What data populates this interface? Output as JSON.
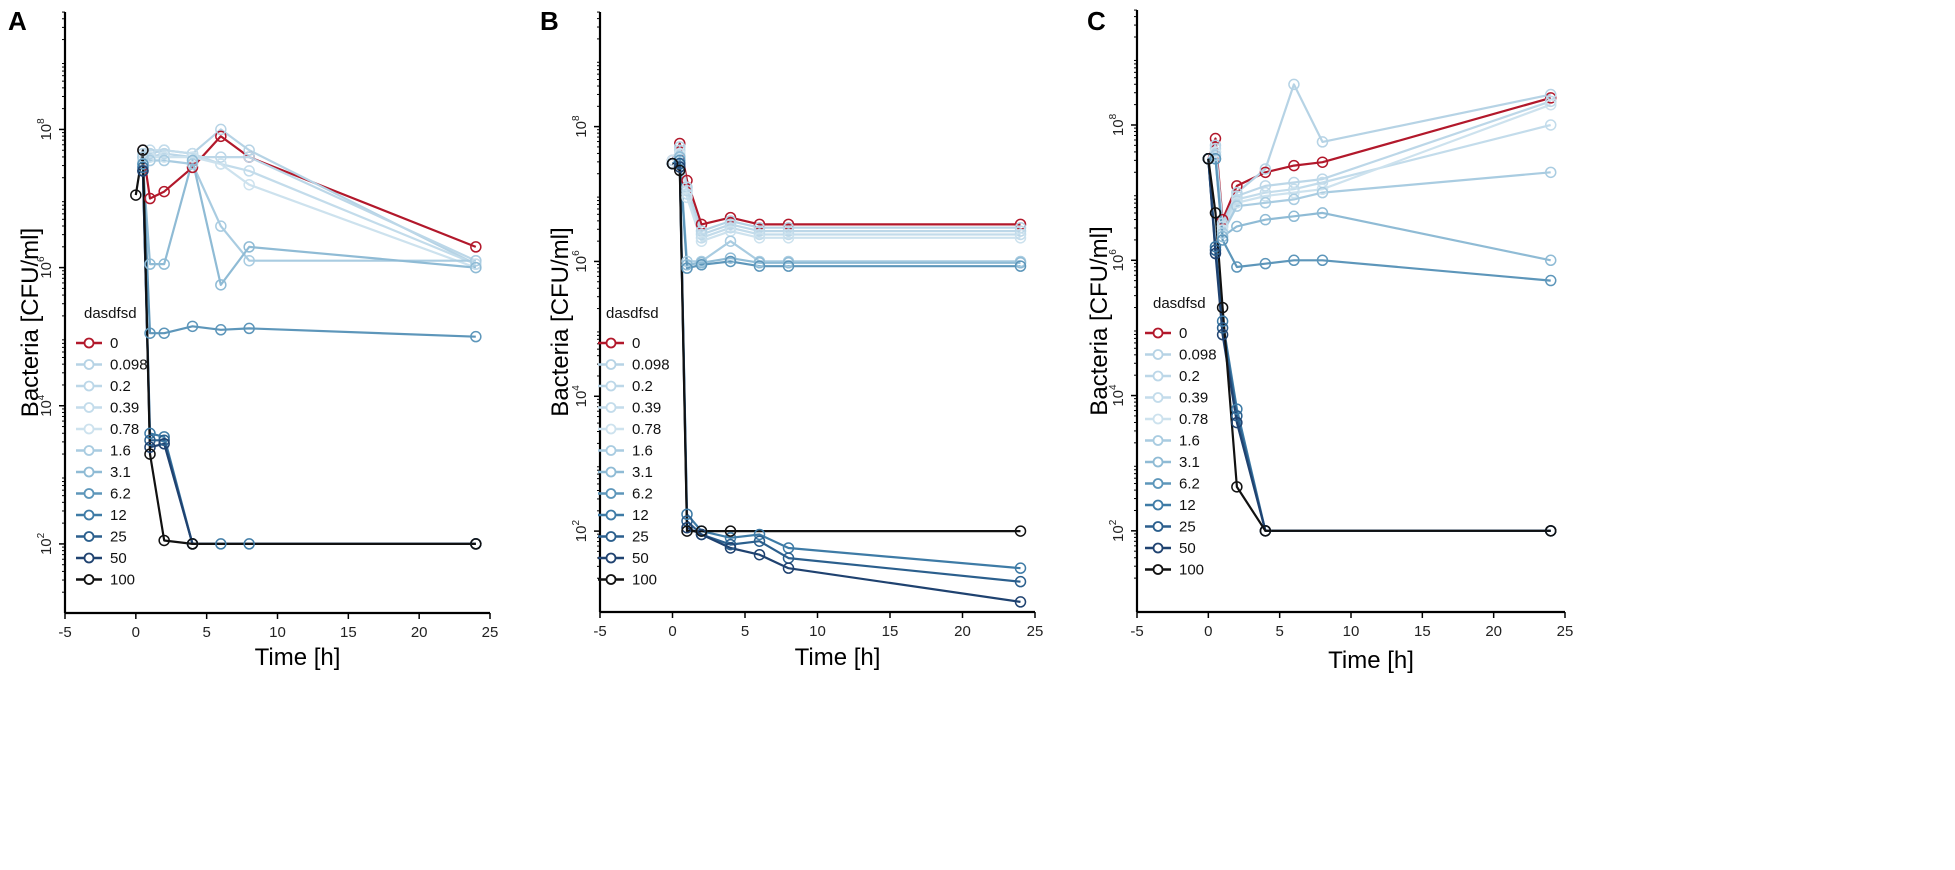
{
  "chart_data": [
    {
      "type": "line",
      "panel": "A",
      "xlabel": "Time [h]",
      "ylabel": "Bacteria [CFU/ml]",
      "xlim": [
        -5,
        25
      ],
      "ylim_log10": [
        1,
        9.7
      ],
      "xticks": [
        "-5",
        "0",
        "5",
        "10",
        "15",
        "20",
        "25"
      ],
      "yticks": [
        {
          "exp": 2,
          "label": "10",
          "sup": "2"
        },
        {
          "exp": 4,
          "label": "10",
          "sup": "4"
        },
        {
          "exp": 6,
          "label": "10",
          "sup": "6"
        },
        {
          "exp": 8,
          "label": "10",
          "sup": "8"
        }
      ],
      "legend_title": "dasdfsd",
      "series": [
        {
          "name": "0",
          "color": "#b2182b",
          "x": [
            0.5,
            1,
            2,
            4,
            6,
            8,
            24
          ],
          "y": [
            7.7,
            7.0,
            7.1,
            7.45,
            7.9,
            7.6,
            6.3
          ]
        },
        {
          "name": "0.098",
          "color": "#b6d3e5",
          "x": [
            0.5,
            1,
            2,
            4,
            6,
            8,
            24
          ],
          "y": [
            7.65,
            7.65,
            7.7,
            7.65,
            8.0,
            7.7,
            6.05
          ]
        },
        {
          "name": "0.2",
          "color": "#bcd7e8",
          "x": [
            0.5,
            1,
            2,
            4,
            6,
            8,
            24
          ],
          "y": [
            7.6,
            7.6,
            7.65,
            7.6,
            7.6,
            7.6,
            6.1
          ]
        },
        {
          "name": "0.39",
          "color": "#c3dceb",
          "x": [
            0.5,
            1,
            2,
            4,
            6,
            8,
            24
          ],
          "y": [
            7.7,
            7.7,
            7.7,
            7.65,
            7.5,
            7.4,
            6.05
          ]
        },
        {
          "name": "0.78",
          "color": "#cde2ee",
          "x": [
            0.5,
            1,
            2,
            4,
            6,
            8,
            24
          ],
          "y": [
            7.55,
            7.6,
            7.6,
            7.6,
            7.5,
            7.2,
            6.0
          ]
        },
        {
          "name": "1.6",
          "color": "#a9cce1",
          "x": [
            0.5,
            1,
            2,
            4,
            6,
            8,
            24
          ],
          "y": [
            7.6,
            7.55,
            7.55,
            7.5,
            6.6,
            6.1,
            6.1
          ]
        },
        {
          "name": "3.1",
          "color": "#8fbbd5",
          "x": [
            0.5,
            1,
            2,
            4,
            6,
            8,
            24
          ],
          "y": [
            7.5,
            6.05,
            6.05,
            7.55,
            5.75,
            6.3,
            6.0
          ]
        },
        {
          "name": "6.2",
          "color": "#5d96ba",
          "x": [
            0.5,
            1,
            2,
            4,
            6,
            8,
            24
          ],
          "y": [
            7.5,
            5.05,
            5.05,
            5.15,
            5.1,
            5.12,
            5.0
          ]
        },
        {
          "name": "12",
          "color": "#3e7ba6",
          "x": [
            0.5,
            1,
            2,
            4,
            6,
            8,
            24
          ],
          "y": [
            7.45,
            3.6,
            3.55,
            2.0,
            2.0,
            2.0,
            2.0
          ]
        },
        {
          "name": "25",
          "color": "#2b5f8d",
          "x": [
            0.5,
            1,
            2,
            4,
            24
          ],
          "y": [
            7.4,
            3.5,
            3.5,
            2.0,
            2.0
          ]
        },
        {
          "name": "50",
          "color": "#1f4270",
          "x": [
            0.5,
            1,
            2,
            4,
            24
          ],
          "y": [
            7.4,
            3.4,
            3.45,
            2.0,
            2.0
          ]
        },
        {
          "name": "100",
          "color": "#111111",
          "x": [
            0,
            0.5,
            1,
            2,
            4,
            24
          ],
          "y": [
            7.05,
            7.7,
            3.3,
            2.05,
            2.0,
            2.0
          ]
        }
      ]
    },
    {
      "type": "line",
      "panel": "B",
      "xlabel": "Time [h]",
      "ylabel": "Bacteria [CFU/ml]",
      "xlim": [
        -5,
        25
      ],
      "ylim_log10": [
        0.8,
        9.7
      ],
      "xticks": [
        "-5",
        "0",
        "5",
        "10",
        "15",
        "20",
        "25"
      ],
      "yticks": [
        {
          "exp": 2,
          "label": "10",
          "sup": "2"
        },
        {
          "exp": 4,
          "label": "10",
          "sup": "4"
        },
        {
          "exp": 6,
          "label": "10",
          "sup": "6"
        },
        {
          "exp": 8,
          "label": "10",
          "sup": "8"
        }
      ],
      "legend_title": "dasdfsd",
      "series": [
        {
          "name": "0",
          "color": "#b2182b",
          "x": [
            0,
            0.5,
            1,
            2,
            4,
            6,
            8,
            24
          ],
          "y": [
            7.5,
            7.75,
            7.2,
            6.55,
            6.65,
            6.55,
            6.55,
            6.55
          ]
        },
        {
          "name": "0.098",
          "color": "#b6d3e5",
          "x": [
            0,
            0.5,
            1,
            2,
            4,
            6,
            8,
            24
          ],
          "y": [
            7.5,
            7.7,
            7.1,
            6.45,
            6.6,
            6.5,
            6.5,
            6.5
          ]
        },
        {
          "name": "0.2",
          "color": "#bcd7e8",
          "x": [
            0,
            0.5,
            1,
            2,
            4,
            6,
            8,
            24
          ],
          "y": [
            7.5,
            7.65,
            7.05,
            6.4,
            6.55,
            6.45,
            6.45,
            6.45
          ]
        },
        {
          "name": "0.39",
          "color": "#c3dceb",
          "x": [
            0,
            0.5,
            1,
            2,
            4,
            6,
            8,
            24
          ],
          "y": [
            7.5,
            7.6,
            7.0,
            6.35,
            6.5,
            6.4,
            6.4,
            6.4
          ]
        },
        {
          "name": "0.78",
          "color": "#cde2ee",
          "x": [
            0,
            0.5,
            1,
            2,
            4,
            6,
            8,
            24
          ],
          "y": [
            7.5,
            7.6,
            6.95,
            6.3,
            6.45,
            6.35,
            6.35,
            6.35
          ]
        },
        {
          "name": "1.6",
          "color": "#a9cce1",
          "x": [
            0,
            0.5,
            1,
            2,
            4,
            6,
            8,
            24
          ],
          "y": [
            7.45,
            7.55,
            6.0,
            6.0,
            6.3,
            6.0,
            6.0,
            6.0
          ]
        },
        {
          "name": "3.1",
          "color": "#8fbbd5",
          "x": [
            0,
            0.5,
            1,
            2,
            4,
            6,
            8,
            24
          ],
          "y": [
            7.45,
            7.55,
            5.95,
            5.98,
            6.05,
            5.98,
            5.98,
            5.98
          ]
        },
        {
          "name": "6.2",
          "color": "#5d96ba",
          "x": [
            0,
            0.5,
            1,
            2,
            4,
            6,
            8,
            24
          ],
          "y": [
            7.45,
            7.5,
            5.9,
            5.95,
            6.0,
            5.93,
            5.93,
            5.93
          ]
        },
        {
          "name": "12",
          "color": "#3e7ba6",
          "x": [
            0,
            0.5,
            1,
            2,
            4,
            6,
            8,
            24
          ],
          "y": [
            7.45,
            7.45,
            2.25,
            2.0,
            1.9,
            1.95,
            1.75,
            1.45
          ]
        },
        {
          "name": "25",
          "color": "#2b5f8d",
          "x": [
            0,
            0.5,
            1,
            2,
            4,
            6,
            8,
            24
          ],
          "y": [
            7.45,
            7.45,
            2.15,
            1.95,
            1.8,
            1.85,
            1.6,
            1.25
          ]
        },
        {
          "name": "50",
          "color": "#1f4270",
          "x": [
            0,
            0.5,
            1,
            2,
            4,
            6,
            8,
            24
          ],
          "y": [
            7.45,
            7.4,
            2.05,
            1.95,
            1.75,
            1.65,
            1.45,
            0.95
          ]
        },
        {
          "name": "100",
          "color": "#111111",
          "x": [
            0,
            0.5,
            1,
            2,
            4,
            24
          ],
          "y": [
            7.45,
            7.35,
            2.0,
            2.0,
            2.0,
            2.0
          ]
        }
      ]
    },
    {
      "type": "line",
      "panel": "C",
      "xlabel": "Time [h]",
      "ylabel": "Bacteria [CFU/ml]",
      "xlim": [
        -5,
        25
      ],
      "ylim_log10": [
        0.8,
        9.7
      ],
      "xticks": [
        "-5",
        "0",
        "5",
        "10",
        "15",
        "20",
        "25"
      ],
      "yticks": [
        {
          "exp": 2,
          "label": "10",
          "sup": "2"
        },
        {
          "exp": 4,
          "label": "10",
          "sup": "4"
        },
        {
          "exp": 6,
          "label": "10",
          "sup": "6"
        },
        {
          "exp": 8,
          "label": "10",
          "sup": "8"
        }
      ],
      "legend_title": "dasdfsd",
      "series": [
        {
          "name": "0",
          "color": "#b2182b",
          "x": [
            0,
            0.5,
            1,
            2,
            4,
            6,
            8,
            24
          ],
          "y": [
            7.5,
            7.8,
            6.6,
            7.1,
            7.3,
            7.4,
            7.45,
            8.4
          ]
        },
        {
          "name": "0.098",
          "color": "#b6d3e5",
          "x": [
            0,
            0.5,
            1,
            2,
            4,
            6,
            8,
            24
          ],
          "y": [
            7.5,
            7.7,
            6.55,
            7.0,
            7.35,
            8.6,
            7.75,
            8.45
          ]
        },
        {
          "name": "0.2",
          "color": "#bcd7e8",
          "x": [
            0,
            0.5,
            1,
            2,
            4,
            6,
            8,
            24
          ],
          "y": [
            7.5,
            7.65,
            6.5,
            6.95,
            7.1,
            7.15,
            7.2,
            8.35
          ]
        },
        {
          "name": "0.39",
          "color": "#c3dceb",
          "x": [
            0,
            0.5,
            1,
            2,
            4,
            6,
            8,
            24
          ],
          "y": [
            7.5,
            7.6,
            6.5,
            6.9,
            7.0,
            7.05,
            7.15,
            8.0
          ]
        },
        {
          "name": "0.78",
          "color": "#cde2ee",
          "x": [
            0,
            0.5,
            1,
            2,
            4,
            6,
            8,
            24
          ],
          "y": [
            7.5,
            7.6,
            6.45,
            6.85,
            6.95,
            7.0,
            7.05,
            8.3
          ]
        },
        {
          "name": "1.6",
          "color": "#a9cce1",
          "x": [
            0,
            0.5,
            1,
            2,
            4,
            6,
            8,
            24
          ],
          "y": [
            7.5,
            7.55,
            6.4,
            6.8,
            6.85,
            6.9,
            7.0,
            7.3
          ]
        },
        {
          "name": "3.1",
          "color": "#8fbbd5",
          "x": [
            0,
            0.5,
            1,
            2,
            4,
            6,
            8,
            24
          ],
          "y": [
            7.5,
            7.5,
            6.35,
            6.5,
            6.6,
            6.65,
            6.7,
            6.0
          ]
        },
        {
          "name": "6.2",
          "color": "#5d96ba",
          "x": [
            0,
            0.5,
            1,
            2,
            4,
            6,
            8,
            24
          ],
          "y": [
            7.5,
            7.5,
            6.3,
            5.9,
            5.95,
            6.0,
            6.0,
            5.7
          ]
        },
        {
          "name": "12",
          "color": "#3e7ba6",
          "x": [
            0,
            0.5,
            1,
            2,
            4,
            24
          ],
          "y": [
            7.5,
            6.2,
            5.1,
            3.8,
            2.0,
            2.0
          ]
        },
        {
          "name": "25",
          "color": "#2b5f8d",
          "x": [
            0,
            0.5,
            1,
            2,
            4,
            24
          ],
          "y": [
            7.5,
            6.15,
            5.0,
            3.7,
            2.0,
            2.0
          ]
        },
        {
          "name": "50",
          "color": "#1f4270",
          "x": [
            0,
            0.5,
            1,
            2,
            4,
            24
          ],
          "y": [
            7.5,
            6.1,
            4.9,
            3.6,
            2.0,
            2.0
          ]
        },
        {
          "name": "100",
          "color": "#111111",
          "x": [
            0,
            0.5,
            1,
            2,
            4,
            24
          ],
          "y": [
            7.5,
            6.7,
            5.3,
            2.65,
            2.0,
            2.0
          ]
        }
      ]
    }
  ]
}
